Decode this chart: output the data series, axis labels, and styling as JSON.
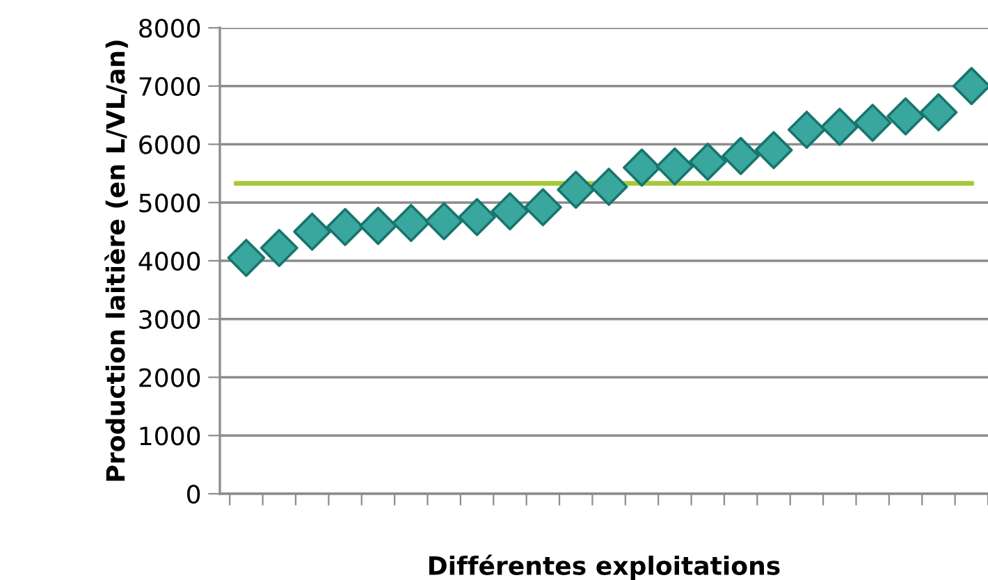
{
  "chart_data": {
    "type": "scatter",
    "xlabel": "Différentes exploitations",
    "ylabel": "Production laitière (en L/VL/an)",
    "categories": [
      null,
      null,
      null,
      null,
      null,
      null,
      null,
      null,
      null,
      null,
      null,
      null,
      null,
      null,
      null,
      null,
      null,
      null,
      null,
      null,
      null,
      null,
      null
    ],
    "series": [
      {
        "color": "#3aa79e",
        "values": [
          4050,
          4220,
          4500,
          4580,
          4600,
          4650,
          4680,
          4750,
          4850,
          4920,
          5220,
          5270,
          5600,
          5620,
          5700,
          5800,
          5900,
          6250,
          6300,
          6370,
          6480,
          6550,
          7000
        ]
      }
    ],
    "ref_lines": [
      {
        "axis": "y",
        "value": 5330,
        "color": "#a8c83c",
        "line_style": "solid"
      }
    ],
    "ylim": [
      0,
      8000
    ],
    "yticks": [
      0,
      1000,
      2000,
      3000,
      4000,
      5000,
      6000,
      7000,
      8000
    ],
    "grid": "y",
    "marker": "diamond",
    "legend": false
  }
}
